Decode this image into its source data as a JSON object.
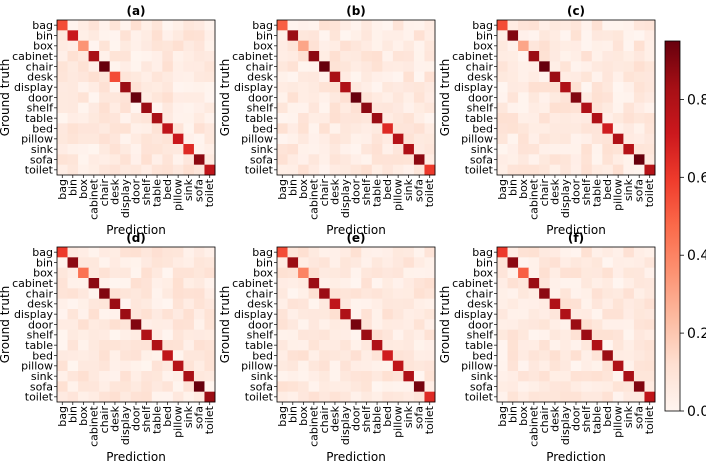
{
  "chart_data": {
    "type": "heatmap",
    "colormap": "Reds",
    "color_range": [
      0,
      0.95
    ],
    "colorbar_ticks": [
      "0.0",
      "0.2",
      "0.4",
      "0.6",
      "0.8"
    ],
    "xlabel": "Prediction",
    "ylabel": "Ground truth",
    "categories": [
      "bag",
      "bin",
      "box",
      "cabinet",
      "chair",
      "desk",
      "display",
      "door",
      "shelf",
      "table",
      "bed",
      "pillow",
      "sink",
      "sofa",
      "toilet"
    ],
    "panels": [
      {
        "title": "(a)",
        "diagonal": [
          0.55,
          0.72,
          0.35,
          0.82,
          0.95,
          0.55,
          0.85,
          0.95,
          0.85,
          0.82,
          0.75,
          0.72,
          0.65,
          0.88,
          0.75
        ]
      },
      {
        "title": "(b)",
        "diagonal": [
          0.5,
          0.85,
          0.3,
          0.88,
          0.95,
          0.82,
          0.8,
          0.95,
          0.88,
          0.85,
          0.65,
          0.78,
          0.8,
          0.88,
          0.6
        ]
      },
      {
        "title": "(c)",
        "diagonal": [
          0.55,
          0.9,
          0.3,
          0.85,
          0.95,
          0.85,
          0.8,
          0.9,
          0.8,
          0.8,
          0.7,
          0.8,
          0.78,
          0.95,
          0.78
        ]
      },
      {
        "title": "(d)",
        "diagonal": [
          0.6,
          0.88,
          0.45,
          0.88,
          0.9,
          0.85,
          0.85,
          0.9,
          0.8,
          0.8,
          0.75,
          0.78,
          0.82,
          0.95,
          0.85
        ]
      },
      {
        "title": "(e)",
        "diagonal": [
          0.55,
          0.85,
          0.4,
          0.85,
          0.85,
          0.75,
          0.8,
          0.92,
          0.85,
          0.8,
          0.7,
          0.75,
          0.8,
          0.92,
          0.65
        ]
      },
      {
        "title": "(f)",
        "diagonal": [
          0.6,
          0.88,
          0.5,
          0.85,
          0.88,
          0.8,
          0.8,
          0.85,
          0.85,
          0.8,
          0.85,
          0.8,
          0.82,
          0.9,
          0.75
        ]
      }
    ]
  }
}
